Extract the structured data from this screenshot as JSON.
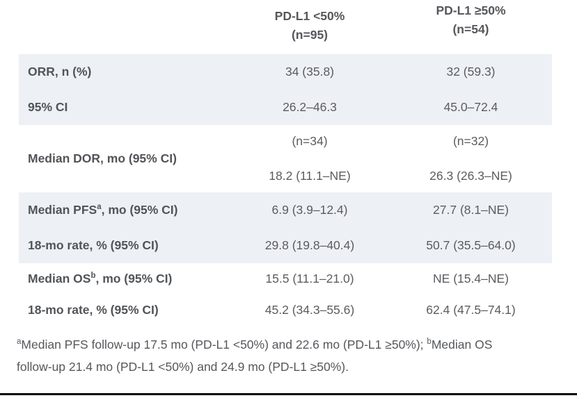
{
  "page": {
    "band_color": "#edf0f4",
    "label_text_color": "#515458",
    "value_text_color": "#5a5c60",
    "bottom_line_color": "#000000"
  },
  "table": {
    "header": {
      "col2": {
        "line1": "PD-L1 <50%",
        "line2": "(n=95)"
      },
      "col3": {
        "line1": "PD-L1 ≥50%",
        "line2": "(n=54)"
      }
    },
    "rows": [
      {
        "label": "ORR, n (%)",
        "col2": "34 (35.8)",
        "col3": "32 (59.3)"
      },
      {
        "label": "95% CI",
        "col2": "26.2–46.3",
        "col3": "45.0–72.4"
      },
      {
        "label": "Median DOR, mo (95% CI)",
        "col2_line1": "(n=34)",
        "col2_line2": "18.2 (11.1–NE)",
        "col3_line1": "(n=32)",
        "col3_line2": "26.3 (26.3–NE)"
      },
      {
        "label_pre": "Median PFS",
        "label_sup": "a",
        "label_post": ", mo (95% CI)",
        "col2": "6.9 (3.9–12.4)",
        "col3": "27.7 (8.1–NE)"
      },
      {
        "label": "18-mo rate, % (95% CI)",
        "col2": "29.8 (19.8–40.4)",
        "col3": "50.7 (35.5–64.0)"
      },
      {
        "label_pre": "Median OS",
        "label_sup": "b",
        "label_post": ", mo (95% CI)",
        "col2": "15.5 (11.1–21.0)",
        "col3": "NE (15.4–NE)"
      },
      {
        "label": "18-mo rate, % (95% CI)",
        "col2": "45.2 (34.3–55.6)",
        "col3": "62.4 (47.5–74.1)"
      }
    ]
  },
  "footnote": {
    "sup_a": "a",
    "text_a": "Median PFS follow-up 17.5 mo (PD-L1 <50%) and 22.6 mo (PD-L1 ≥50%); ",
    "sup_b": "b",
    "text_b": "Median OS follow-up 21.4 mo (PD-L1 <50%) and 24.9 mo (PD-L1 ≥50%)."
  }
}
